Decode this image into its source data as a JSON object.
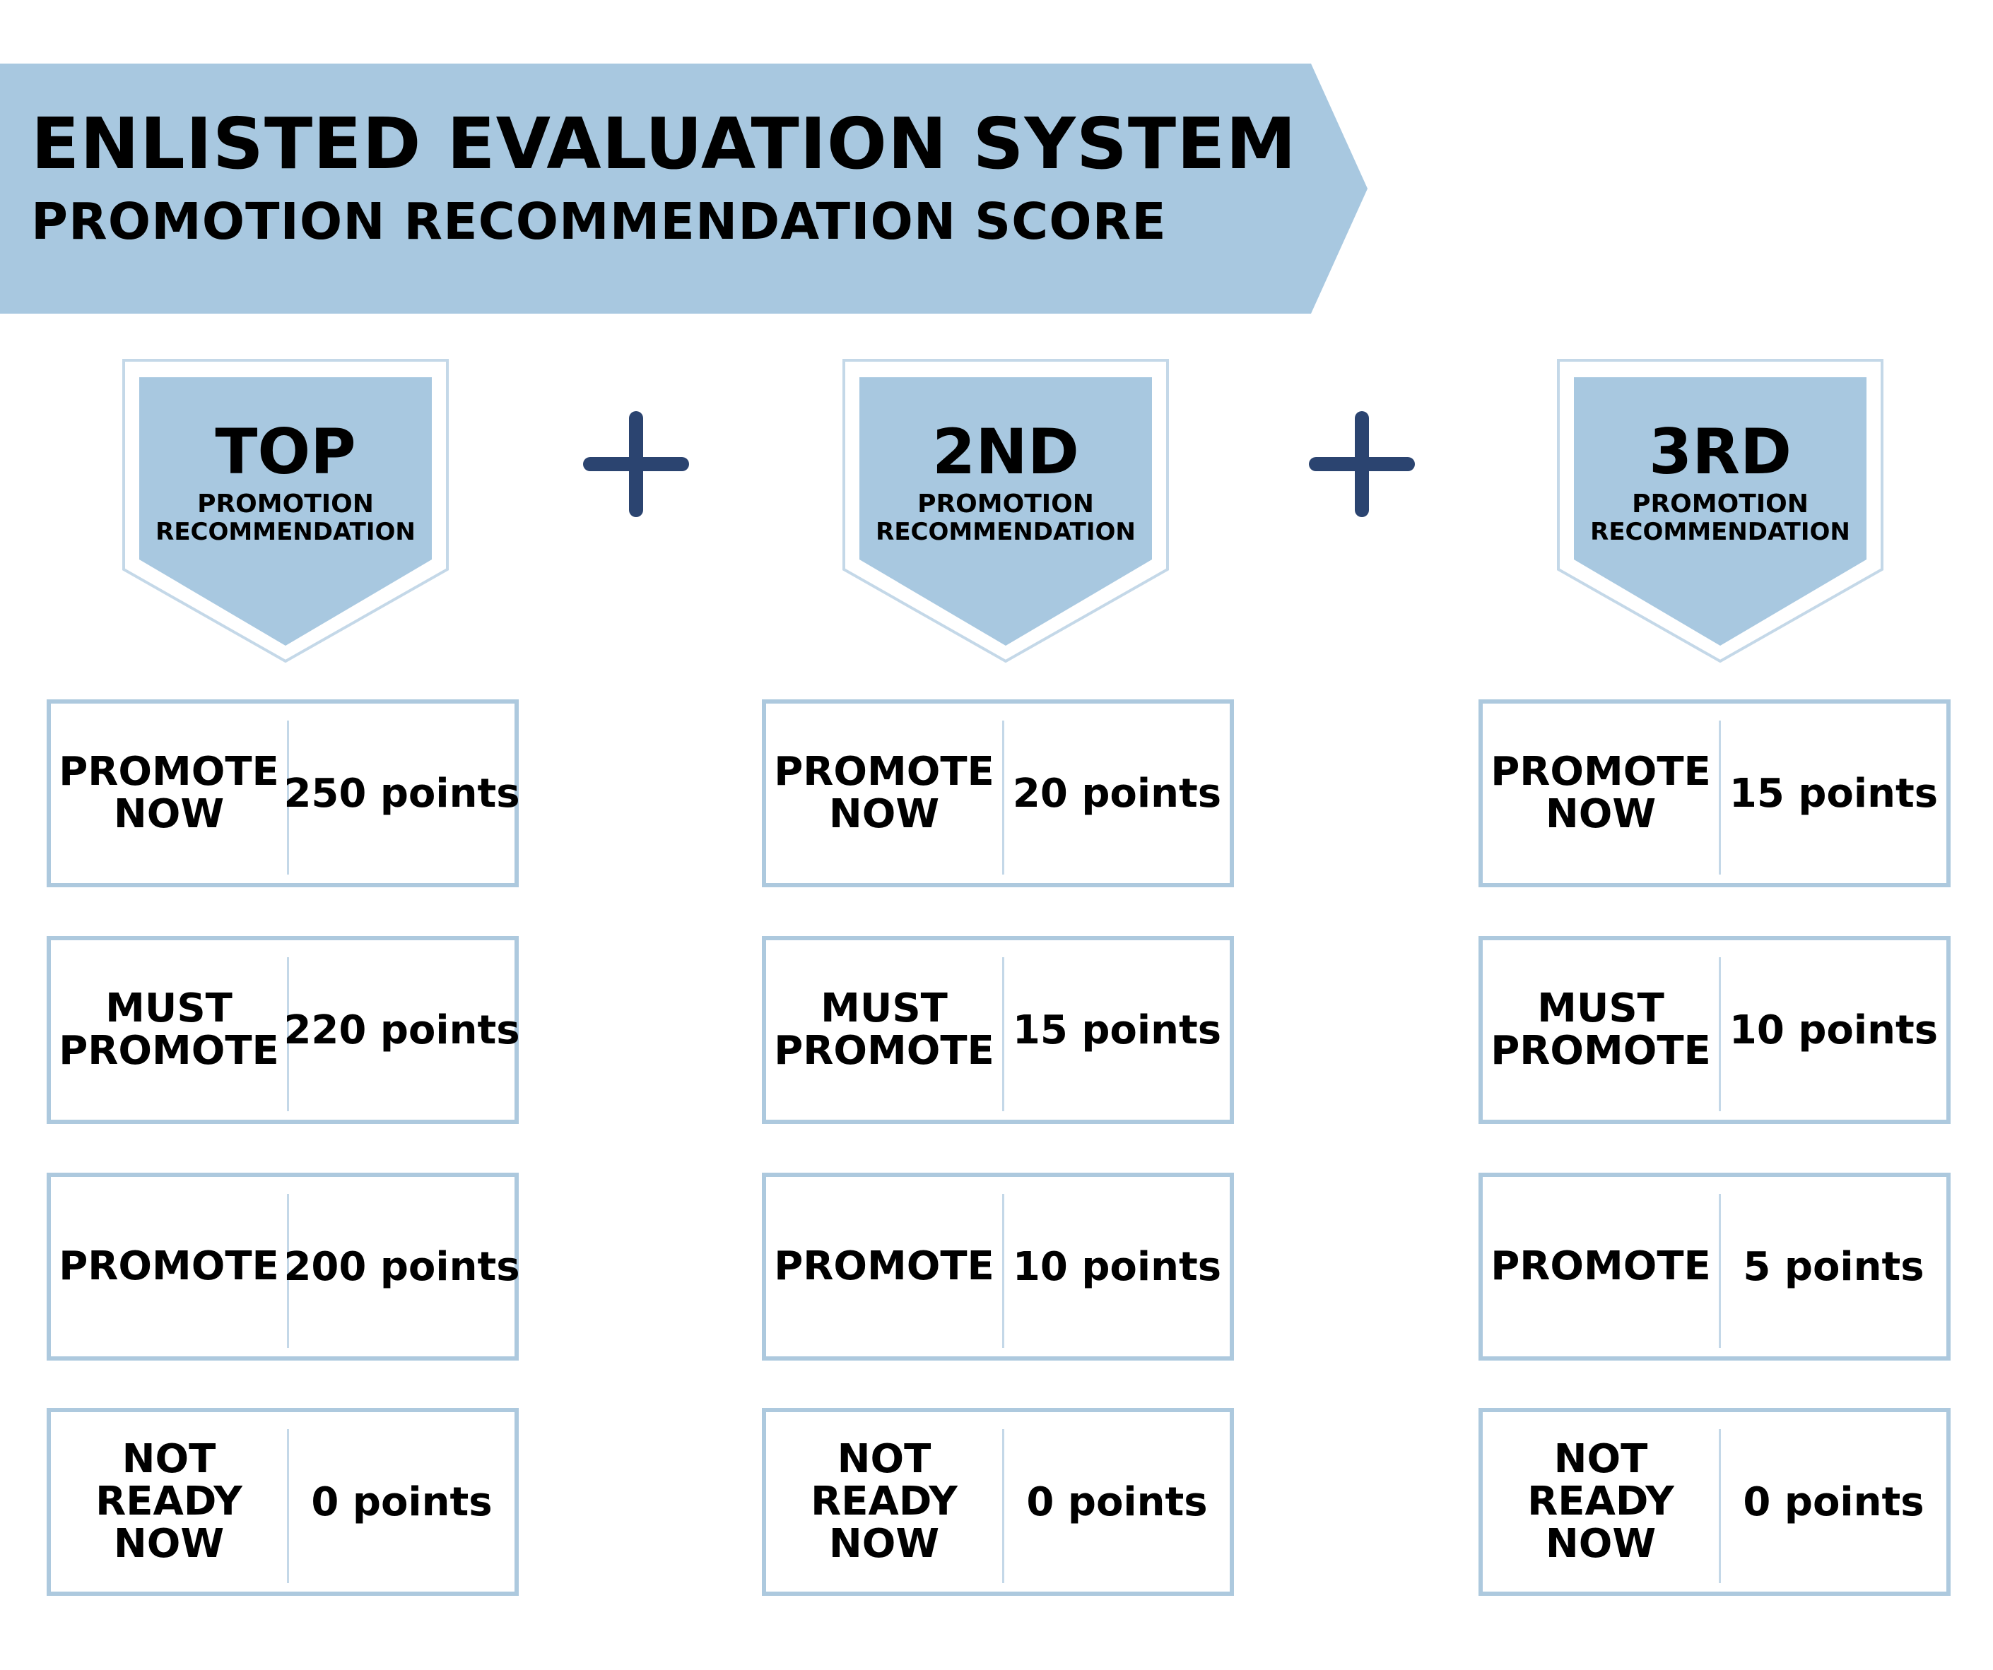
{
  "header": {
    "title": "ENLISTED EVALUATION SYSTEM",
    "subtitle": "PROMOTION RECOMMENDATION SCORE"
  },
  "colors": {
    "accent_light_blue": "#a8c8e0",
    "box_border": "#adc9de",
    "plus_navy": "#2b4470",
    "text": "#000000"
  },
  "operators": [
    "+",
    "+"
  ],
  "columns": [
    {
      "rank": "TOP",
      "label_line1": "PROMOTION",
      "label_line2": "RECOMMENDATION",
      "rows": [
        {
          "label_lines": [
            "PROMOTE",
            "NOW"
          ],
          "points": "250 points"
        },
        {
          "label_lines": [
            "MUST",
            "PROMOTE"
          ],
          "points": "220 points"
        },
        {
          "label_lines": [
            "PROMOTE"
          ],
          "points": "200 points"
        },
        {
          "label_lines": [
            "NOT",
            "READY",
            "NOW"
          ],
          "points": "0 points"
        }
      ]
    },
    {
      "rank": "2ND",
      "label_line1": "PROMOTION",
      "label_line2": "RECOMMENDATION",
      "rows": [
        {
          "label_lines": [
            "PROMOTE",
            "NOW"
          ],
          "points": "20 points"
        },
        {
          "label_lines": [
            "MUST",
            "PROMOTE"
          ],
          "points": "15 points"
        },
        {
          "label_lines": [
            "PROMOTE"
          ],
          "points": "10 points"
        },
        {
          "label_lines": [
            "NOT",
            "READY",
            "NOW"
          ],
          "points": "0 points"
        }
      ]
    },
    {
      "rank": "3RD",
      "label_line1": "PROMOTION",
      "label_line2": "RECOMMENDATION",
      "rows": [
        {
          "label_lines": [
            "PROMOTE",
            "NOW"
          ],
          "points": "15 points"
        },
        {
          "label_lines": [
            "MUST",
            "PROMOTE"
          ],
          "points": "10 points"
        },
        {
          "label_lines": [
            "PROMOTE"
          ],
          "points": "5 points"
        },
        {
          "label_lines": [
            "NOT",
            "READY",
            "NOW"
          ],
          "points": "0 points"
        }
      ]
    }
  ]
}
